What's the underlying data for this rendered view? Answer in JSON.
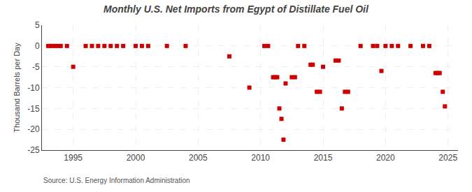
{
  "chart_data": {
    "type": "scatter",
    "title": "Monthly U.S. Net Imports from Egypt of Distillate Fuel Oil",
    "ylabel": "Thousand Barrels per Day",
    "annotations": [
      "Source: U.S. Energy Information Administration"
    ],
    "color": "#cc0000",
    "marker": "square",
    "grid": true,
    "xlim": [
      1992.5,
      2025.8
    ],
    "ylim": [
      -25,
      5
    ],
    "xticks": [
      1995,
      2000,
      2005,
      2010,
      2015,
      2020,
      2025
    ],
    "yticks": [
      5,
      0,
      -5,
      -10,
      -15,
      -20,
      -25
    ],
    "x": [
      1993.0,
      1993.25,
      1993.5,
      1993.75,
      1994.0,
      1994.5,
      1995.0,
      1996.0,
      1996.5,
      1997.0,
      1997.5,
      1998.0,
      1998.5,
      1999.0,
      2000.0,
      2000.5,
      2001.0,
      2002.5,
      2004.0,
      2007.5,
      2009.1,
      2010.3,
      2010.6,
      2011.0,
      2011.17,
      2011.33,
      2011.5,
      2011.67,
      2011.83,
      2012.0,
      2012.5,
      2012.75,
      2013.0,
      2013.5,
      2014.0,
      2014.17,
      2014.5,
      2014.75,
      2015.0,
      2016.0,
      2016.25,
      2016.5,
      2016.75,
      2017.0,
      2018.0,
      2019.0,
      2019.33,
      2019.67,
      2020.0,
      2020.5,
      2021.0,
      2022.0,
      2023.0,
      2023.5,
      2024.0,
      2024.17,
      2024.33,
      2024.58,
      2024.75
    ],
    "values": [
      0,
      0,
      0,
      0,
      0,
      0,
      -5.0,
      0,
      0,
      0,
      0,
      0,
      0,
      0,
      0,
      0,
      0,
      0,
      0,
      -2.5,
      -10.0,
      0,
      0,
      -7.5,
      -7.5,
      -7.5,
      -15.0,
      -17.5,
      -22.5,
      -9.0,
      -7.5,
      -7.5,
      0,
      0,
      -4.5,
      -4.5,
      -11.0,
      -11.0,
      -5.0,
      -3.5,
      -3.5,
      -15.0,
      -11.0,
      -11.0,
      0,
      0,
      0,
      -6.0,
      0,
      0,
      0,
      0,
      0,
      0,
      -6.5,
      -6.5,
      -6.5,
      -11.0,
      -14.5
    ]
  }
}
